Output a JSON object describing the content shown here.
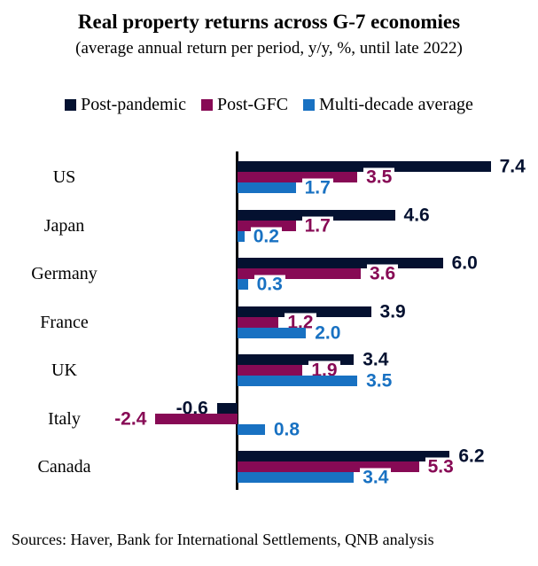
{
  "header": {
    "title": "Real property returns across G-7 economies",
    "subtitle": "(average annual return per period, y/y, %, until late 2022)"
  },
  "chart_data": {
    "type": "bar",
    "orientation": "horizontal",
    "title": "Real property returns across G-7 economies",
    "subtitle": "(average annual return per period, y/y, %, until late 2022)",
    "xlabel": "",
    "ylabel": "",
    "grid": false,
    "legend_position": "top",
    "xlim": [
      -3.2,
      8.8
    ],
    "value_label_decimals": 1,
    "categories": [
      "US",
      "Japan",
      "Germany",
      "France",
      "UK",
      "Italy",
      "Canada"
    ],
    "series": [
      {
        "name": "Post-pandemic",
        "color": "#041130",
        "values": [
          7.4,
          4.6,
          6.0,
          3.9,
          3.4,
          -0.6,
          6.2
        ]
      },
      {
        "name": "Post-GFC",
        "color": "#870a55",
        "values": [
          3.5,
          1.7,
          3.6,
          1.2,
          1.9,
          -2.4,
          5.3
        ]
      },
      {
        "name": "Multi-decade average",
        "color": "#1871c2",
        "values": [
          1.7,
          0.2,
          0.3,
          2.0,
          3.5,
          0.8,
          3.4
        ]
      }
    ],
    "axis_color": "#000000"
  },
  "footer": {
    "sources": "Sources: Haver, Bank for International Settlements, QNB analysis"
  }
}
